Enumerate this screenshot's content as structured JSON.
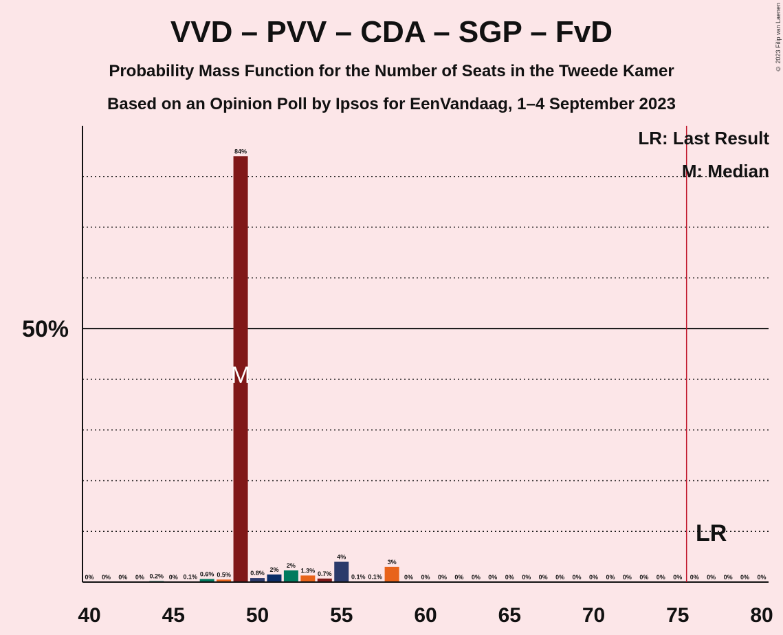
{
  "title": "VVD – PVV – CDA – SGP – FvD",
  "subtitle1": "Probability Mass Function for the Number of Seats in the Tweede Kamer",
  "subtitle2": "Based on an Opinion Poll by Ipsos for EenVandaag, 1–4 September 2023",
  "copyright": "© 2023 Filip van Laenen",
  "legend": {
    "last_result": "LR: Last Result",
    "median": "M: Median"
  },
  "markers": {
    "median_label": "M",
    "median_seat": 49,
    "last_result_label": "LR",
    "last_result_seat": 76
  },
  "chart_data": {
    "type": "bar",
    "xlim": [
      40,
      80
    ],
    "ylim": [
      0,
      90
    ],
    "x_ticks": [
      40,
      45,
      50,
      55,
      60,
      65,
      70,
      75,
      80
    ],
    "y_tick_labels": [
      {
        "value": 50,
        "label": "50%"
      }
    ],
    "gridlines": [
      10,
      20,
      30,
      40,
      60,
      70,
      80
    ],
    "majority_line": 50,
    "colors": {
      "VVD": "#0a2d68",
      "PVV": "#2b3a6b",
      "CDA": "#007a5e",
      "SGP": "#e8631a",
      "FvD": "#801818",
      "last_result_line": "#c0152a"
    },
    "bars": [
      {
        "seat": 40,
        "value": 0,
        "label": "0%",
        "color": "FvD"
      },
      {
        "seat": 41,
        "value": 0,
        "label": "0%",
        "color": "FvD"
      },
      {
        "seat": 42,
        "value": 0,
        "label": "0%",
        "color": "FvD"
      },
      {
        "seat": 43,
        "value": 0,
        "label": "0%",
        "color": "FvD"
      },
      {
        "seat": 44,
        "value": 0.2,
        "label": "0.2%",
        "color": "CDA"
      },
      {
        "seat": 45,
        "value": 0,
        "label": "0%",
        "color": "FvD"
      },
      {
        "seat": 46,
        "value": 0.1,
        "label": "0.1%",
        "color": "VVD"
      },
      {
        "seat": 47,
        "value": 0.6,
        "label": "0.6%",
        "color": "CDA"
      },
      {
        "seat": 48,
        "value": 0.5,
        "label": "0.5%",
        "color": "SGP"
      },
      {
        "seat": 49,
        "value": 84,
        "label": "84%",
        "color": "FvD"
      },
      {
        "seat": 50,
        "value": 0.8,
        "label": "0.8%",
        "color": "PVV"
      },
      {
        "seat": 51,
        "value": 1.5,
        "label": "2%",
        "color": "VVD"
      },
      {
        "seat": 52,
        "value": 2.3,
        "label": "2%",
        "color": "CDA"
      },
      {
        "seat": 53,
        "value": 1.3,
        "label": "1.3%",
        "color": "SGP"
      },
      {
        "seat": 54,
        "value": 0.7,
        "label": "0.7%",
        "color": "FvD"
      },
      {
        "seat": 55,
        "value": 4,
        "label": "4%",
        "color": "PVV"
      },
      {
        "seat": 56,
        "value": 0.1,
        "label": "0.1%",
        "color": "FvD"
      },
      {
        "seat": 57,
        "value": 0.1,
        "label": "0.1%",
        "color": "FvD"
      },
      {
        "seat": 58,
        "value": 3,
        "label": "3%",
        "color": "SGP"
      },
      {
        "seat": 59,
        "value": 0,
        "label": "0%",
        "color": "FvD"
      },
      {
        "seat": 60,
        "value": 0,
        "label": "0%",
        "color": "FvD"
      },
      {
        "seat": 61,
        "value": 0,
        "label": "0%",
        "color": "FvD"
      },
      {
        "seat": 62,
        "value": 0,
        "label": "0%",
        "color": "FvD"
      },
      {
        "seat": 63,
        "value": 0,
        "label": "0%",
        "color": "FvD"
      },
      {
        "seat": 64,
        "value": 0,
        "label": "0%",
        "color": "FvD"
      },
      {
        "seat": 65,
        "value": 0,
        "label": "0%",
        "color": "FvD"
      },
      {
        "seat": 66,
        "value": 0,
        "label": "0%",
        "color": "FvD"
      },
      {
        "seat": 67,
        "value": 0,
        "label": "0%",
        "color": "FvD"
      },
      {
        "seat": 68,
        "value": 0,
        "label": "0%",
        "color": "FvD"
      },
      {
        "seat": 69,
        "value": 0,
        "label": "0%",
        "color": "FvD"
      },
      {
        "seat": 70,
        "value": 0,
        "label": "0%",
        "color": "FvD"
      },
      {
        "seat": 71,
        "value": 0,
        "label": "0%",
        "color": "FvD"
      },
      {
        "seat": 72,
        "value": 0,
        "label": "0%",
        "color": "FvD"
      },
      {
        "seat": 73,
        "value": 0,
        "label": "0%",
        "color": "FvD"
      },
      {
        "seat": 74,
        "value": 0,
        "label": "0%",
        "color": "FvD"
      },
      {
        "seat": 75,
        "value": 0,
        "label": "0%",
        "color": "FvD"
      },
      {
        "seat": 76,
        "value": 0,
        "label": "0%",
        "color": "FvD"
      },
      {
        "seat": 77,
        "value": 0,
        "label": "0%",
        "color": "FvD"
      },
      {
        "seat": 78,
        "value": 0,
        "label": "0%",
        "color": "FvD"
      },
      {
        "seat": 79,
        "value": 0,
        "label": "0%",
        "color": "FvD"
      },
      {
        "seat": 80,
        "value": 0,
        "label": "0%",
        "color": "FvD"
      }
    ]
  }
}
